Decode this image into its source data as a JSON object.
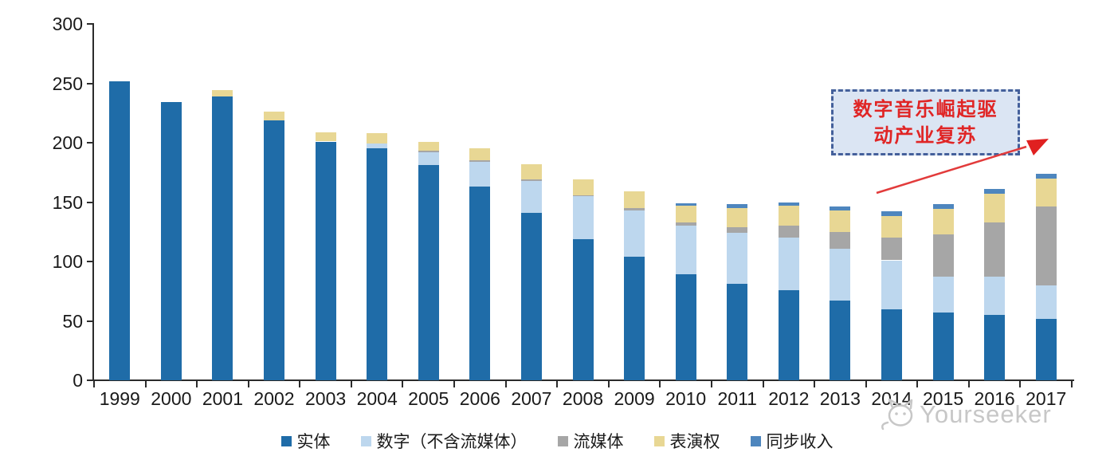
{
  "chart_data": {
    "type": "bar",
    "stacked": true,
    "title": "",
    "xlabel": "",
    "ylabel": "",
    "ylim": [
      0,
      300
    ],
    "yticks": [
      0,
      50,
      100,
      150,
      200,
      250,
      300
    ],
    "grid": false,
    "legend_position": "bottom",
    "categories": [
      "1999",
      "2000",
      "2001",
      "2002",
      "2003",
      "2004",
      "2005",
      "2006",
      "2007",
      "2008",
      "2009",
      "2010",
      "2011",
      "2012",
      "2013",
      "2014",
      "2015",
      "2016",
      "2017"
    ],
    "series": [
      {
        "name": "实体",
        "color": "#1f6ca8",
        "values": [
          252,
          234,
          239,
          219,
          201,
          195,
          181,
          163,
          141,
          119,
          104,
          89,
          81,
          76,
          67,
          60,
          57,
          55,
          52
        ]
      },
      {
        "name": "数字（不含流媒体）",
        "color": "#bdd7ee",
        "values": [
          0,
          0,
          0,
          0,
          0,
          4,
          11,
          21,
          27,
          36,
          39,
          41,
          43,
          44,
          44,
          41,
          30,
          32,
          28
        ]
      },
      {
        "name": "流媒体",
        "color": "#a6a6a6",
        "values": [
          0,
          0,
          0,
          0,
          0,
          0,
          1,
          1,
          1,
          1,
          2,
          3,
          5,
          10,
          14,
          19,
          36,
          46,
          66
        ]
      },
      {
        "name": "表演权",
        "color": "#e8d794",
        "values": [
          0,
          0,
          5,
          7,
          8,
          9,
          8,
          10,
          13,
          13,
          14,
          14,
          16,
          17,
          18,
          18,
          21,
          24,
          24
        ]
      },
      {
        "name": "同步收入",
        "color": "#4e86be",
        "values": [
          0,
          0,
          0,
          0,
          0,
          0,
          0,
          0,
          0,
          0,
          0,
          2,
          3,
          3,
          3,
          4,
          4,
          4,
          4
        ]
      }
    ]
  },
  "annotation": {
    "line1": "数字音乐崛起驱",
    "line2": "动产业复苏",
    "text_color": "#e02525",
    "box_fill": "#dbe5f3",
    "box_border": "#44609b",
    "arrow_color": "#e02020"
  },
  "watermark": {
    "text": "Yourseeker",
    "logo": "cat-logo-icon",
    "color": "#c7c7c7"
  }
}
